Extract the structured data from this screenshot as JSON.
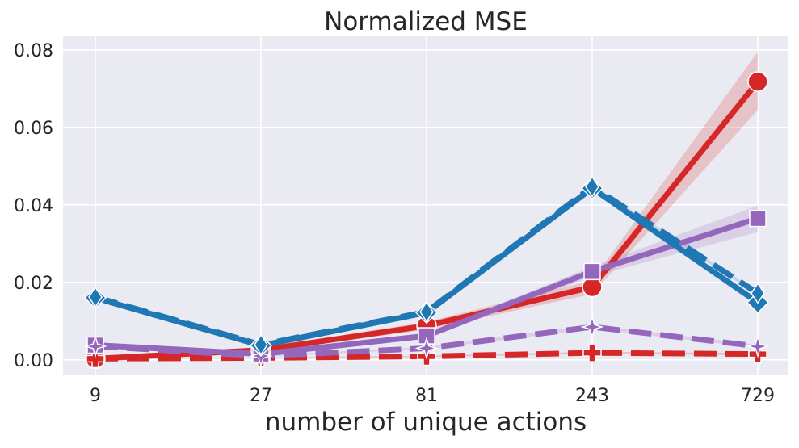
{
  "chart_data": {
    "type": "line",
    "title": "Normalized MSE",
    "xlabel": "number of unique actions",
    "ylabel": "",
    "x_scale": "log",
    "categories": [
      "9",
      "27",
      "81",
      "243",
      "729"
    ],
    "x": [
      9,
      27,
      81,
      243,
      729
    ],
    "ylim": [
      -0.004,
      0.0835
    ],
    "yticks": [
      0.0,
      0.02,
      0.04,
      0.06,
      0.08
    ],
    "ytick_labels": [
      "0.00",
      "0.02",
      "0.04",
      "0.06",
      "0.08"
    ],
    "grid": true,
    "legend": "none",
    "series": [
      {
        "color": "#d62728",
        "style": "solid",
        "marker": "circle",
        "values": [
          0.0003,
          0.0025,
          0.0088,
          0.0188,
          0.0718
        ],
        "ci_low": [
          0.0002,
          0.002,
          0.0078,
          0.017,
          0.0645
        ],
        "ci_high": [
          0.0004,
          0.003,
          0.0098,
          0.0205,
          0.0795
        ]
      },
      {
        "color": "#d62728",
        "style": "dashed",
        "marker": "plus",
        "values": [
          0.0003,
          0.0005,
          0.0009,
          0.0018,
          0.0015
        ],
        "ci_low": [
          0.0002,
          0.0004,
          0.0007,
          0.0015,
          0.0012
        ],
        "ci_high": [
          0.0004,
          0.0006,
          0.0011,
          0.0021,
          0.0018
        ]
      },
      {
        "color": "#9467bd",
        "style": "solid",
        "marker": "square",
        "values": [
          0.0038,
          0.0015,
          0.0062,
          0.0228,
          0.0365
        ],
        "ci_low": [
          0.0034,
          0.0012,
          0.0056,
          0.0215,
          0.033
        ],
        "ci_high": [
          0.0042,
          0.0018,
          0.0068,
          0.0241,
          0.0398
        ]
      },
      {
        "color": "#9467bd",
        "style": "dashed",
        "marker": "star",
        "values": [
          0.0035,
          0.001,
          0.003,
          0.0085,
          0.0035
        ],
        "ci_low": [
          0.0032,
          0.0008,
          0.0027,
          0.008,
          0.0031
        ],
        "ci_high": [
          0.0038,
          0.0012,
          0.0033,
          0.009,
          0.0039
        ]
      },
      {
        "color": "#1f77b4",
        "style": "solid",
        "marker": "diamond",
        "values": [
          0.016,
          0.0037,
          0.0122,
          0.0443,
          0.0148
        ],
        "ci_low": [
          0.0157,
          0.0034,
          0.0119,
          0.0438,
          0.0144
        ],
        "ci_high": [
          0.0163,
          0.004,
          0.0125,
          0.0448,
          0.0152
        ]
      },
      {
        "color": "#1f77b4",
        "style": "dashed",
        "marker": "thin-diamond",
        "values": [
          0.0162,
          0.0039,
          0.0124,
          0.0447,
          0.0172
        ],
        "ci_low": [
          0.0159,
          0.0036,
          0.0121,
          0.0442,
          0.0168
        ],
        "ci_high": [
          0.0165,
          0.0042,
          0.0127,
          0.0452,
          0.0176
        ]
      }
    ]
  }
}
